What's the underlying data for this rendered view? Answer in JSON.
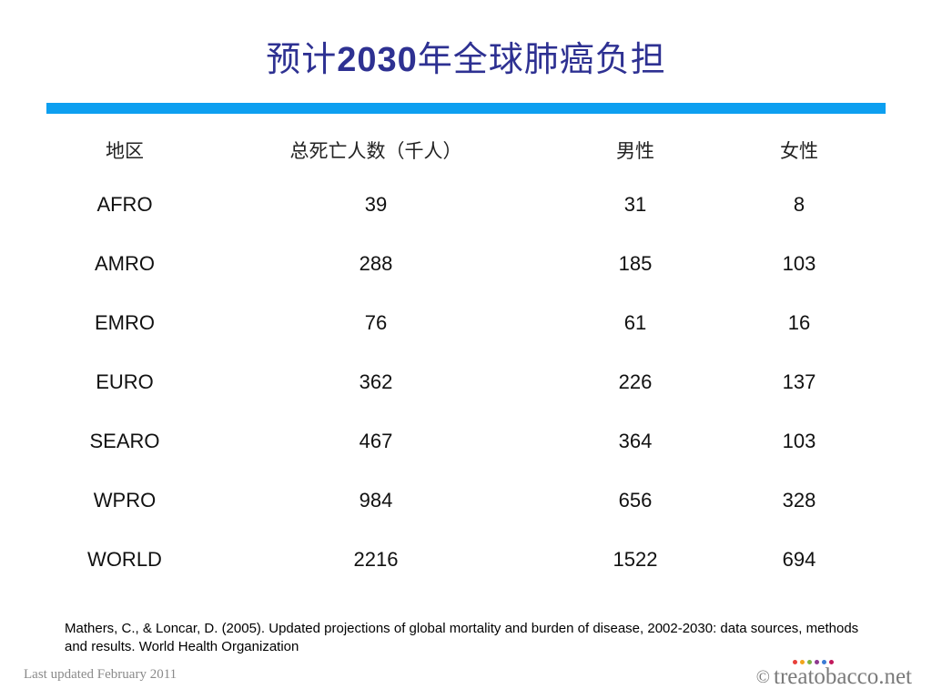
{
  "title": {
    "prefix": "预计",
    "year": "2030",
    "suffix": "年全球肺癌负担"
  },
  "table": {
    "headers": [
      "地区",
      "总死亡人数（千人）",
      "男性",
      "女性"
    ],
    "rows": [
      [
        "AFRO",
        "39",
        "31",
        "8"
      ],
      [
        "AMRO",
        "288",
        "185",
        "103"
      ],
      [
        "EMRO",
        "76",
        "61",
        "16"
      ],
      [
        "EURO",
        "362",
        "226",
        "137"
      ],
      [
        "SEARO",
        "467",
        "364",
        "103"
      ],
      [
        "WPRO",
        "984",
        "656",
        "328"
      ],
      [
        "WORLD",
        "2216",
        "1522",
        "694"
      ]
    ]
  },
  "citation": "Mathers, C., & Loncar, D. (2005). Updated projections of global mortality and burden of disease, 2002-2030: data sources, methods and results. World Health Organization",
  "footer": {
    "updated": "Last updated February 2011",
    "copyright_symbol": "©",
    "brand": "treatobacco.net",
    "brand_dot_colors": [
      "#e8403a",
      "#f2a51a",
      "#7cb342",
      "#8e3a8e",
      "#3a7bd5",
      "#c2185b"
    ]
  },
  "colors": {
    "title": "#2e3192",
    "rule": "#0d9ff0"
  }
}
